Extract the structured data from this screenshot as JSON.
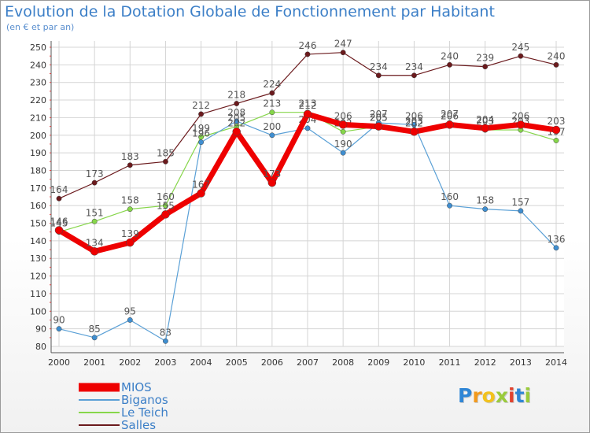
{
  "title": "Evolution de la Dotation Globale de Fonctionnement par Habitant",
  "subtitle": "(en € et par an)",
  "brand": {
    "letters": [
      {
        "ch": "P",
        "color": "#2f86d6"
      },
      {
        "ch": "r",
        "color": "#f29a1d"
      },
      {
        "ch": "o",
        "color": "#f2c21d"
      },
      {
        "ch": "x",
        "color": "#9acb3c"
      },
      {
        "ch": "i",
        "color": "#e2432f"
      },
      {
        "ch": "t",
        "color": "#2f86d6"
      },
      {
        "ch": "i",
        "color": "#9acb3c"
      }
    ]
  },
  "chart_data": {
    "type": "line",
    "title": "Evolution de la Dotation Globale de Fonctionnement par Habitant",
    "subtitle": "(en € et par an)",
    "x": [
      "2000",
      "2001",
      "2002",
      "2003",
      "2004",
      "2005",
      "2006",
      "2007",
      "2008",
      "2009",
      "2010",
      "2011",
      "2012",
      "2013",
      "2014"
    ],
    "ylim": [
      80,
      250
    ],
    "yticks": [
      80,
      90,
      100,
      110,
      120,
      130,
      140,
      150,
      160,
      170,
      180,
      190,
      200,
      210,
      220,
      230,
      240,
      250
    ],
    "grid": true,
    "legend_position": "bottom-left",
    "series": [
      {
        "name": "Salles",
        "color": "#6b1a1d",
        "marker": "#6b1a1d",
        "width": 1.2,
        "values": [
          164,
          173,
          183,
          185,
          212,
          218,
          224,
          246,
          247,
          234,
          234,
          240,
          239,
          245,
          240
        ]
      },
      {
        "name": "Le Teich",
        "color": "#86d64a",
        "marker": "#86d64a",
        "width": 1.2,
        "values": [
          145,
          151,
          158,
          160,
          199,
          205,
          213,
          213,
          202,
          205,
          203,
          207,
          203,
          203,
          197
        ]
      },
      {
        "name": "Biganos",
        "color": "#5aa0d6",
        "marker": "#3f8ed0",
        "width": 1.2,
        "values": [
          90,
          85,
          95,
          83,
          196,
          208,
          200,
          204,
          190,
          207,
          206,
          160,
          158,
          157,
          136
        ]
      },
      {
        "name": "MIOS",
        "color": "#ee0000",
        "marker": "#ee0000",
        "width": 7,
        "values": [
          146,
          134,
          139,
          155,
          167,
          202,
          173,
          212,
          206,
          205,
          202,
          206,
          204,
          206,
          203
        ]
      }
    ],
    "legend_order": [
      "MIOS",
      "Biganos",
      "Le Teich",
      "Salles"
    ]
  }
}
